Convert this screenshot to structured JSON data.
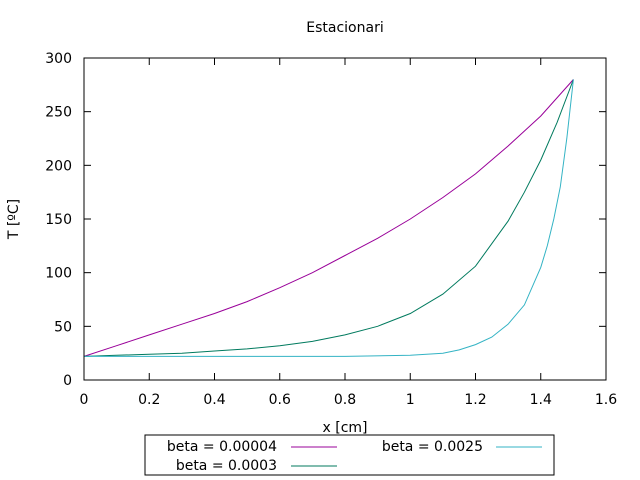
{
  "chart_data": {
    "type": "line",
    "title": "Estacionari",
    "xlabel": "x [cm]",
    "ylabel": "T [ºC]",
    "xlim": [
      0,
      1.6
    ],
    "ylim": [
      0,
      300
    ],
    "xticks": [
      "0",
      "0.2",
      "0.4",
      "0.6",
      "0.8",
      "1",
      "1.2",
      "1.4",
      "1.6"
    ],
    "yticks": [
      "0",
      "50",
      "100",
      "150",
      "200",
      "250",
      "300"
    ],
    "grid": false,
    "legend_position": "bottom-center, outside plot",
    "series": [
      {
        "name": "beta = 0.00004",
        "color": "#990099",
        "x": [
          0,
          0.1,
          0.2,
          0.3,
          0.4,
          0.5,
          0.6,
          0.7,
          0.8,
          0.9,
          1.0,
          1.1,
          1.2,
          1.3,
          1.4,
          1.5
        ],
        "y": [
          22,
          32,
          42,
          52,
          62,
          73,
          86,
          100,
          116,
          132,
          150,
          170,
          192,
          218,
          246,
          280
        ]
      },
      {
        "name": "beta = 0.0003",
        "color": "#007a5e",
        "x": [
          0,
          0.1,
          0.2,
          0.3,
          0.4,
          0.5,
          0.6,
          0.7,
          0.8,
          0.9,
          1.0,
          1.1,
          1.2,
          1.3,
          1.35,
          1.4,
          1.45,
          1.5
        ],
        "y": [
          22,
          23,
          24,
          25,
          27,
          29,
          32,
          36,
          42,
          50,
          62,
          80,
          106,
          148,
          175,
          205,
          240,
          280
        ]
      },
      {
        "name": "beta = 0.0025",
        "color": "#33b3c4",
        "x": [
          0,
          0.2,
          0.4,
          0.6,
          0.8,
          1.0,
          1.1,
          1.15,
          1.2,
          1.25,
          1.3,
          1.35,
          1.4,
          1.42,
          1.44,
          1.46,
          1.48,
          1.5
        ],
        "y": [
          22,
          22,
          22,
          22,
          22,
          23,
          25,
          28,
          33,
          40,
          52,
          70,
          105,
          125,
          150,
          180,
          225,
          280
        ]
      }
    ]
  }
}
